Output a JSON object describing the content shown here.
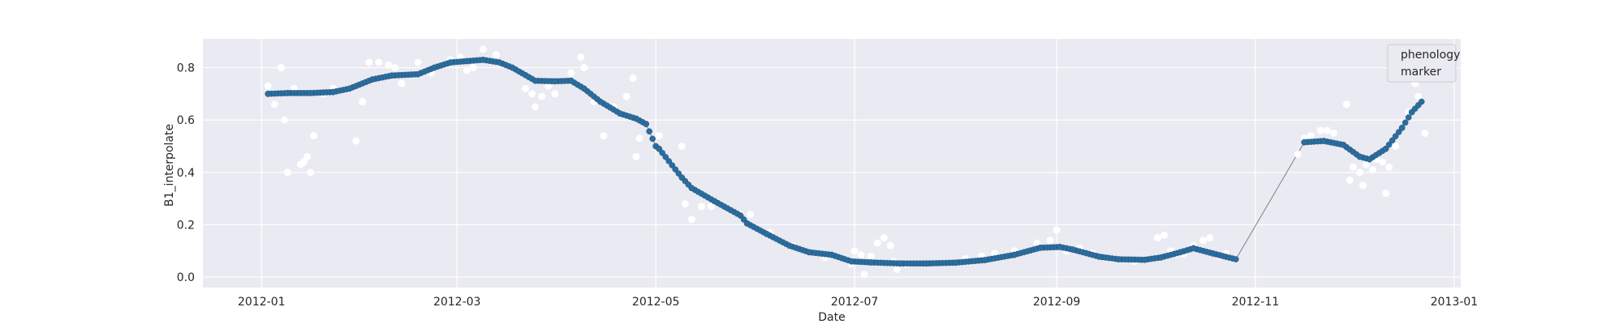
{
  "chart_data": {
    "type": "scatter",
    "title": "",
    "xlabel": "Date",
    "ylabel": "B1_interpolate",
    "x_range": [
      "2011-12-14",
      "2013-01-03"
    ],
    "ylim": [
      -0.04,
      0.91
    ],
    "x_ticks": [
      "2012-01",
      "2012-03",
      "2012-05",
      "2012-07",
      "2012-09",
      "2012-11",
      "2013-01"
    ],
    "x_tick_dates": [
      "2012-01-01",
      "2012-03-01",
      "2012-05-01",
      "2012-07-01",
      "2012-09-01",
      "2012-11-01",
      "2013-01-01"
    ],
    "y_ticks": [
      "0.0",
      "0.2",
      "0.4",
      "0.6",
      "0.8"
    ],
    "y_tick_values": [
      0.0,
      0.2,
      0.4,
      0.6,
      0.8
    ],
    "grid": true,
    "legend": {
      "placement": "top-right",
      "entries": [
        "phenology",
        "marker"
      ]
    },
    "colors": {
      "background": "#eaeaf2",
      "grid": "#ffffff",
      "series_line": "#808080",
      "series_marker": "#2b6d9e",
      "raw_marker": "#ffffff"
    },
    "series": [
      {
        "role": "interpolated",
        "points": [
          [
            "2012-01-03",
            0.7
          ],
          [
            "2012-01-09",
            0.703
          ],
          [
            "2012-01-16",
            0.703
          ],
          [
            "2012-01-23",
            0.707
          ],
          [
            "2012-01-28",
            0.72
          ],
          [
            "2012-02-04",
            0.755
          ],
          [
            "2012-02-10",
            0.77
          ],
          [
            "2012-02-18",
            0.775
          ],
          [
            "2012-02-23",
            0.8
          ],
          [
            "2012-02-28",
            0.82
          ],
          [
            "2012-03-04",
            0.825
          ],
          [
            "2012-03-09",
            0.83
          ],
          [
            "2012-03-14",
            0.82
          ],
          [
            "2012-03-18",
            0.8
          ],
          [
            "2012-03-25",
            0.75
          ],
          [
            "2012-03-31",
            0.748
          ],
          [
            "2012-04-05",
            0.75
          ],
          [
            "2012-04-09",
            0.72
          ],
          [
            "2012-04-14",
            0.67
          ],
          [
            "2012-04-20",
            0.625
          ],
          [
            "2012-04-25",
            0.605
          ],
          [
            "2012-04-28",
            0.585
          ],
          [
            "2012-05-01",
            0.5
          ],
          [
            "2012-05-02",
            0.49
          ],
          [
            "2012-05-09",
            0.38
          ],
          [
            "2012-05-12",
            0.34
          ],
          [
            "2012-05-19",
            0.29
          ],
          [
            "2012-05-27",
            0.235
          ],
          [
            "2012-05-29",
            0.205
          ],
          [
            "2012-06-04",
            0.165
          ],
          [
            "2012-06-11",
            0.12
          ],
          [
            "2012-06-17",
            0.095
          ],
          [
            "2012-06-24",
            0.085
          ],
          [
            "2012-06-30",
            0.06
          ],
          [
            "2012-07-06",
            0.056
          ],
          [
            "2012-07-15",
            0.052
          ],
          [
            "2012-07-23",
            0.052
          ],
          [
            "2012-08-01",
            0.055
          ],
          [
            "2012-08-10",
            0.065
          ],
          [
            "2012-08-19",
            0.085
          ],
          [
            "2012-08-27",
            0.112
          ],
          [
            "2012-09-02",
            0.115
          ],
          [
            "2012-09-06",
            0.105
          ],
          [
            "2012-09-14",
            0.078
          ],
          [
            "2012-09-20",
            0.068
          ],
          [
            "2012-09-28",
            0.066
          ],
          [
            "2012-10-03",
            0.075
          ],
          [
            "2012-10-09",
            0.095
          ],
          [
            "2012-10-13",
            0.11
          ],
          [
            "2012-10-19",
            0.09
          ],
          [
            "2012-10-26",
            0.068
          ],
          [
            "2012-11-16",
            0.515
          ],
          [
            "2012-11-22",
            0.52
          ],
          [
            "2012-11-28",
            0.505
          ],
          [
            "2012-12-03",
            0.46
          ],
          [
            "2012-12-06",
            0.45
          ],
          [
            "2012-12-11",
            0.49
          ],
          [
            "2012-12-16",
            0.57
          ],
          [
            "2012-12-19",
            0.63
          ],
          [
            "2012-12-22",
            0.67
          ]
        ]
      },
      {
        "role": "raw",
        "points": [
          [
            "2012-01-03",
            0.73
          ],
          [
            "2012-01-05",
            0.66
          ],
          [
            "2012-01-07",
            0.8
          ],
          [
            "2012-01-08",
            0.6
          ],
          [
            "2012-01-09",
            0.4
          ],
          [
            "2012-01-11",
            0.72
          ],
          [
            "2012-01-13",
            0.43
          ],
          [
            "2012-01-14",
            0.44
          ],
          [
            "2012-01-15",
            0.46
          ],
          [
            "2012-01-16",
            0.4
          ],
          [
            "2012-01-17",
            0.54
          ],
          [
            "2012-01-20",
            0.7
          ],
          [
            "2012-01-23",
            0.72
          ],
          [
            "2012-01-28",
            0.72
          ],
          [
            "2012-01-30",
            0.52
          ],
          [
            "2012-02-01",
            0.67
          ],
          [
            "2012-02-03",
            0.82
          ],
          [
            "2012-02-06",
            0.82
          ],
          [
            "2012-02-09",
            0.81
          ],
          [
            "2012-02-11",
            0.8
          ],
          [
            "2012-02-13",
            0.74
          ],
          [
            "2012-02-18",
            0.82
          ],
          [
            "2012-02-22",
            0.78
          ],
          [
            "2012-02-28",
            0.83
          ],
          [
            "2012-03-02",
            0.84
          ],
          [
            "2012-03-04",
            0.79
          ],
          [
            "2012-03-06",
            0.8
          ],
          [
            "2012-03-09",
            0.87
          ],
          [
            "2012-03-13",
            0.85
          ],
          [
            "2012-03-22",
            0.72
          ],
          [
            "2012-03-24",
            0.7
          ],
          [
            "2012-03-25",
            0.65
          ],
          [
            "2012-03-27",
            0.69
          ],
          [
            "2012-03-29",
            0.73
          ],
          [
            "2012-03-31",
            0.7
          ],
          [
            "2012-04-05",
            0.78
          ],
          [
            "2012-04-08",
            0.84
          ],
          [
            "2012-04-09",
            0.8
          ],
          [
            "2012-04-12",
            0.67
          ],
          [
            "2012-04-15",
            0.54
          ],
          [
            "2012-04-18",
            0.65
          ],
          [
            "2012-04-22",
            0.69
          ],
          [
            "2012-04-24",
            0.76
          ],
          [
            "2012-04-25",
            0.46
          ],
          [
            "2012-04-26",
            0.53
          ],
          [
            "2012-05-02",
            0.54
          ],
          [
            "2012-05-09",
            0.5
          ],
          [
            "2012-05-10",
            0.28
          ],
          [
            "2012-05-12",
            0.22
          ],
          [
            "2012-05-15",
            0.27
          ],
          [
            "2012-05-18",
            0.27
          ],
          [
            "2012-05-27",
            0.24
          ],
          [
            "2012-05-30",
            0.24
          ],
          [
            "2012-06-05",
            0.17
          ],
          [
            "2012-06-12",
            0.12
          ],
          [
            "2012-06-22",
            0.075
          ],
          [
            "2012-06-30",
            0.05
          ],
          [
            "2012-07-01",
            0.1
          ],
          [
            "2012-07-03",
            0.085
          ],
          [
            "2012-07-06",
            0.08
          ],
          [
            "2012-07-08",
            0.13
          ],
          [
            "2012-07-10",
            0.15
          ],
          [
            "2012-07-12",
            0.12
          ],
          [
            "2012-07-13",
            0.06
          ],
          [
            "2012-07-14",
            0.03
          ],
          [
            "2012-07-04",
            0.01
          ],
          [
            "2012-07-17",
            0.05
          ],
          [
            "2012-08-04",
            0.07
          ],
          [
            "2012-08-09",
            0.08
          ],
          [
            "2012-08-13",
            0.09
          ],
          [
            "2012-08-19",
            0.1
          ],
          [
            "2012-08-26",
            0.13
          ],
          [
            "2012-08-30",
            0.14
          ],
          [
            "2012-09-01",
            0.18
          ],
          [
            "2012-09-04",
            0.1
          ],
          [
            "2012-09-08",
            0.11
          ],
          [
            "2012-09-12",
            0.09
          ],
          [
            "2012-09-18",
            0.07
          ],
          [
            "2012-09-25",
            0.06
          ],
          [
            "2012-10-02",
            0.15
          ],
          [
            "2012-10-04",
            0.16
          ],
          [
            "2012-10-06",
            0.1
          ],
          [
            "2012-10-08",
            0.09
          ],
          [
            "2012-10-10",
            0.09
          ],
          [
            "2012-10-13",
            0.12
          ],
          [
            "2012-10-16",
            0.14
          ],
          [
            "2012-10-18",
            0.15
          ],
          [
            "2012-10-21",
            0.08
          ],
          [
            "2012-10-23",
            0.09
          ],
          [
            "2012-11-14",
            0.47
          ],
          [
            "2012-11-16",
            0.53
          ],
          [
            "2012-11-18",
            0.54
          ],
          [
            "2012-11-21",
            0.56
          ],
          [
            "2012-11-23",
            0.56
          ],
          [
            "2012-11-25",
            0.55
          ],
          [
            "2012-11-29",
            0.66
          ],
          [
            "2012-11-30",
            0.37
          ],
          [
            "2012-12-01",
            0.42
          ],
          [
            "2012-12-03",
            0.4
          ],
          [
            "2012-12-04",
            0.35
          ],
          [
            "2012-12-05",
            0.43
          ],
          [
            "2012-12-07",
            0.41
          ],
          [
            "2012-12-08",
            0.45
          ],
          [
            "2012-12-10",
            0.44
          ],
          [
            "2012-12-11",
            0.32
          ],
          [
            "2012-12-12",
            0.42
          ],
          [
            "2012-12-14",
            0.5
          ],
          [
            "2012-12-18",
            0.63
          ],
          [
            "2012-12-20",
            0.74
          ],
          [
            "2012-12-21",
            0.69
          ],
          [
            "2012-12-23",
            0.55
          ]
        ]
      }
    ]
  }
}
